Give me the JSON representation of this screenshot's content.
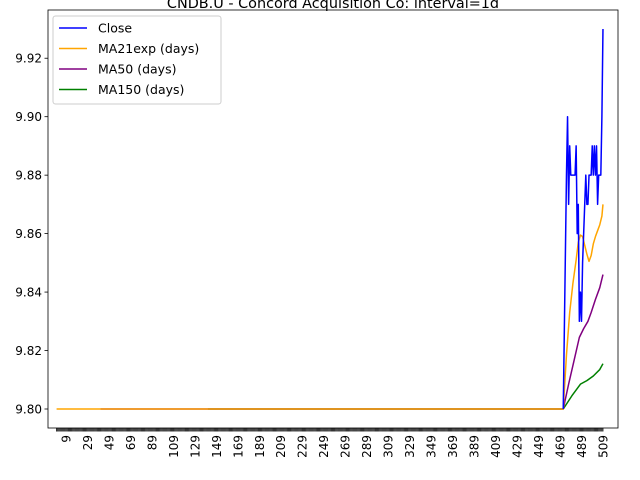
{
  "chart_data": {
    "type": "line",
    "title": "CNDB.U - Concord Acquisition Co: interval=1d",
    "xlabel": "",
    "ylabel": "",
    "xlim": [
      -8,
      523
    ],
    "ylim": [
      9.7935,
      9.9365
    ],
    "yticks": [
      9.8,
      9.82,
      9.84,
      9.86,
      9.88,
      9.9,
      9.92
    ],
    "xticks": [
      9,
      29,
      49,
      69,
      89,
      109,
      129,
      149,
      169,
      189,
      209,
      229,
      249,
      269,
      289,
      309,
      329,
      349,
      369,
      389,
      409,
      429,
      449,
      469,
      489,
      509
    ],
    "grid": false,
    "legend_position": "top-left",
    "series": [
      {
        "name": "MA150 (days)",
        "color": "#008000",
        "x": [
          141,
          472,
          480,
          488,
          494,
          500,
          506,
          509
        ],
        "y": [
          9.8,
          9.8,
          9.8045,
          9.8085,
          9.8097,
          9.8113,
          9.8135,
          9.8155
        ]
      },
      {
        "name": "MA50 (days)",
        "color": "#800080",
        "x": [
          41,
          472,
          477,
          482,
          487,
          491,
          495,
          498,
          502,
          506,
          509
        ],
        "y": [
          9.8,
          9.8,
          9.8085,
          9.8165,
          9.8245,
          9.8275,
          9.83,
          9.833,
          9.8375,
          9.8415,
          9.846
        ]
      },
      {
        "name": "MA21exp (days)",
        "color": "#ffa500",
        "x": [
          0,
          472,
          475,
          478,
          481,
          484,
          486,
          488,
          490,
          492,
          494,
          496,
          498,
          500,
          502,
          504,
          506,
          508,
          509
        ],
        "y": [
          9.8,
          9.8,
          9.8185,
          9.833,
          9.843,
          9.851,
          9.857,
          9.8595,
          9.859,
          9.856,
          9.853,
          9.8505,
          9.8525,
          9.8565,
          9.859,
          9.861,
          9.863,
          9.866,
          9.87
        ]
      },
      {
        "name": "Close",
        "color": "#0000ff",
        "x": [
          472,
          475,
          476,
          477,
          478,
          479,
          480,
          481,
          482,
          483,
          484,
          485,
          486,
          487,
          488,
          489,
          490,
          491,
          492,
          493,
          494,
          495,
          496,
          497,
          498,
          499,
          500,
          501,
          502,
          503,
          504,
          505,
          506,
          507,
          508,
          509
        ],
        "y": [
          9.8,
          9.88,
          9.9,
          9.87,
          9.89,
          9.88,
          9.88,
          9.88,
          9.88,
          9.88,
          9.89,
          9.86,
          9.87,
          9.83,
          9.84,
          9.83,
          9.85,
          9.86,
          9.87,
          9.88,
          9.87,
          9.87,
          9.88,
          9.88,
          9.88,
          9.89,
          9.88,
          9.89,
          9.88,
          9.89,
          9.87,
          9.88,
          9.88,
          9.88,
          9.9,
          9.93
        ]
      }
    ],
    "legend_order": [
      "Close",
      "MA21exp (days)",
      "MA50 (days)",
      "MA150 (days)"
    ]
  }
}
